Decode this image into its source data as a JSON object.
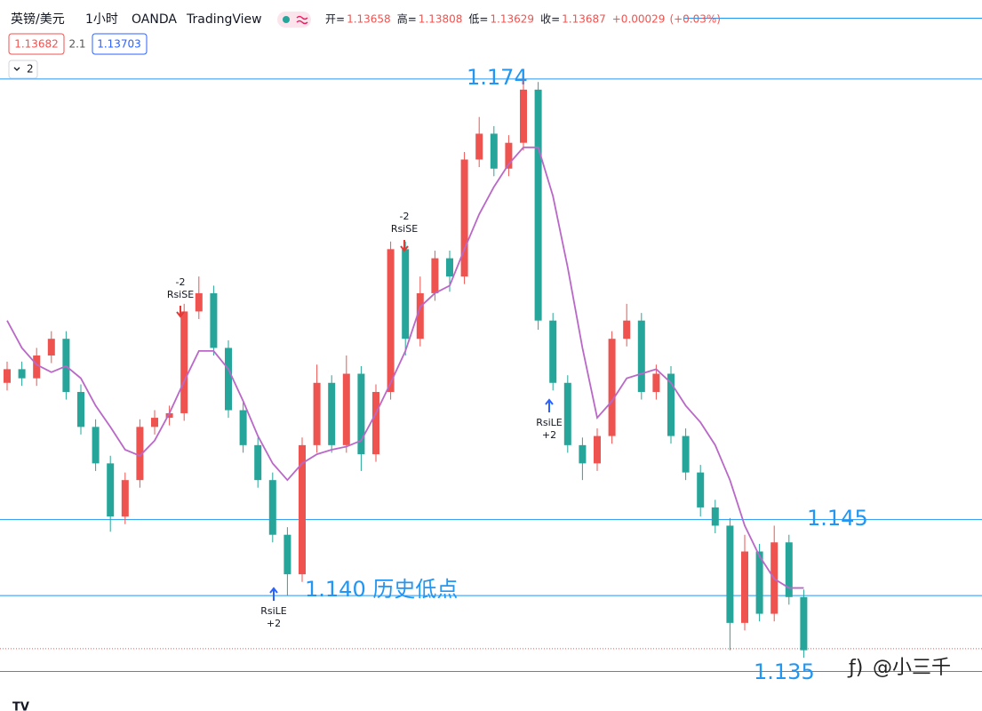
{
  "header": {
    "symbol": "英镑/美元",
    "interval": "1小时",
    "broker": "OANDA",
    "platform": "TradingView",
    "ohlc": [
      {
        "label": "开=",
        "value": 1.13658
      },
      {
        "label": "高=",
        "value": 1.13808
      },
      {
        "label": "低=",
        "value": 1.13629
      },
      {
        "label": "收=",
        "value": 1.13687
      }
    ],
    "change": {
      "value": 0.00029,
      "label": "+0.00029"
    },
    "change_pct": {
      "value": 0.03,
      "label": "(+0.03%)"
    }
  },
  "price_boxes": {
    "bid": 1.13682,
    "spread": 2.1,
    "ask": 1.13703
  },
  "indicator_count": 2,
  "watermark": "@小三千",
  "chart_data": {
    "type": "candlestick",
    "up_color": "#ef5350",
    "down_color": "#26a69a",
    "ylim": [
      1.1324,
      1.1792
    ],
    "ohlc": [
      [
        1.154,
        1.1554,
        1.1535,
        1.1549
      ],
      [
        1.1549,
        1.1554,
        1.1538,
        1.1543
      ],
      [
        1.1543,
        1.1563,
        1.1538,
        1.1558
      ],
      [
        1.1558,
        1.1574,
        1.1553,
        1.1569
      ],
      [
        1.1569,
        1.1574,
        1.1529,
        1.1534
      ],
      [
        1.1534,
        1.1539,
        1.1506,
        1.1511
      ],
      [
        1.1511,
        1.1516,
        1.1482,
        1.1487
      ],
      [
        1.1487,
        1.1492,
        1.1442,
        1.1452
      ],
      [
        1.1452,
        1.1481,
        1.1447,
        1.1476
      ],
      [
        1.1476,
        1.1516,
        1.1471,
        1.1511
      ],
      [
        1.1511,
        1.1522,
        1.1506,
        1.1517
      ],
      [
        1.1517,
        1.1525,
        1.1512,
        1.152
      ],
      [
        1.152,
        1.1592,
        1.1515,
        1.1587
      ],
      [
        1.1587,
        1.161,
        1.1582,
        1.1599
      ],
      [
        1.1599,
        1.1604,
        1.1558,
        1.1563
      ],
      [
        1.1563,
        1.1568,
        1.1517,
        1.1522
      ],
      [
        1.1522,
        1.1527,
        1.1494,
        1.1499
      ],
      [
        1.1499,
        1.1504,
        1.1471,
        1.1476
      ],
      [
        1.1476,
        1.1481,
        1.1435,
        1.144
      ],
      [
        1.144,
        1.1445,
        1.14,
        1.1414
      ],
      [
        1.1414,
        1.1504,
        1.1409,
        1.1499
      ],
      [
        1.1499,
        1.1552,
        1.1494,
        1.154
      ],
      [
        1.154,
        1.1545,
        1.1494,
        1.1499
      ],
      [
        1.1499,
        1.1558,
        1.1494,
        1.1546
      ],
      [
        1.1546,
        1.1551,
        1.1482,
        1.1493
      ],
      [
        1.1493,
        1.1539,
        1.1488,
        1.1534
      ],
      [
        1.1534,
        1.1633,
        1.1529,
        1.1628
      ],
      [
        1.1628,
        1.1633,
        1.1558,
        1.1569
      ],
      [
        1.1569,
        1.161,
        1.1564,
        1.1599
      ],
      [
        1.1599,
        1.1627,
        1.1594,
        1.1622
      ],
      [
        1.1622,
        1.1627,
        1.16,
        1.161
      ],
      [
        1.161,
        1.1692,
        1.1605,
        1.1687
      ],
      [
        1.1687,
        1.1715,
        1.1682,
        1.1704
      ],
      [
        1.1704,
        1.1709,
        1.1676,
        1.1681
      ],
      [
        1.1681,
        1.1703,
        1.1676,
        1.1698
      ],
      [
        1.1698,
        1.174,
        1.1693,
        1.1733
      ],
      [
        1.1733,
        1.1738,
        1.1575,
        1.1581
      ],
      [
        1.1581,
        1.1586,
        1.1535,
        1.154
      ],
      [
        1.154,
        1.1545,
        1.1494,
        1.1499
      ],
      [
        1.1499,
        1.1504,
        1.1476,
        1.1487
      ],
      [
        1.1487,
        1.151,
        1.1482,
        1.1505
      ],
      [
        1.1505,
        1.1574,
        1.15,
        1.1569
      ],
      [
        1.1569,
        1.1592,
        1.1564,
        1.1581
      ],
      [
        1.1581,
        1.1586,
        1.1529,
        1.1534
      ],
      [
        1.1534,
        1.1552,
        1.1529,
        1.1546
      ],
      [
        1.1546,
        1.1551,
        1.15,
        1.1505
      ],
      [
        1.1505,
        1.151,
        1.1476,
        1.1481
      ],
      [
        1.1481,
        1.1486,
        1.1452,
        1.1458
      ],
      [
        1.1458,
        1.1463,
        1.1441,
        1.1446
      ],
      [
        1.1446,
        1.1451,
        1.1364,
        1.1382
      ],
      [
        1.1382,
        1.144,
        1.1377,
        1.1429
      ],
      [
        1.1429,
        1.1434,
        1.1383,
        1.1388
      ],
      [
        1.1388,
        1.1446,
        1.1383,
        1.1435
      ],
      [
        1.1435,
        1.144,
        1.1394,
        1.1399
      ],
      [
        1.1399,
        1.1404,
        1.1359,
        1.1364
      ]
    ],
    "ma": {
      "color": "#ba68c8",
      "values": [
        1.1581,
        1.1563,
        1.1552,
        1.1547,
        1.1551,
        1.1543,
        1.1525,
        1.1511,
        1.1496,
        1.1492,
        1.1502,
        1.152,
        1.1541,
        1.1561,
        1.1561,
        1.1549,
        1.1528,
        1.1505,
        1.1487,
        1.1476,
        1.1487,
        1.1493,
        1.1496,
        1.1498,
        1.1502,
        1.152,
        1.154,
        1.1561,
        1.159,
        1.1599,
        1.1604,
        1.1628,
        1.1651,
        1.1669,
        1.1684,
        1.1695,
        1.1695,
        1.1663,
        1.1616,
        1.1563,
        1.1517,
        1.1528,
        1.1543,
        1.1546,
        1.1549,
        1.154,
        1.1525,
        1.1514,
        1.1499,
        1.1476,
        1.1446,
        1.1426,
        1.1411,
        1.1405,
        1.1405
      ]
    },
    "level_color": "#2196f3",
    "levels": [
      {
        "value": 1.178
      },
      {
        "value": 1.174,
        "label": "1.174"
      },
      {
        "value": 1.145,
        "label": "1.145"
      },
      {
        "value": 1.14,
        "label": "1.140 历史低点"
      },
      {
        "value": 1.135,
        "label": "1.135"
      }
    ],
    "last_price": 1.1365,
    "signals": [
      {
        "label": "RsiSE",
        "qty": -2
      },
      {
        "label": "RsiSE",
        "qty": -2
      },
      {
        "label": "RsiLE",
        "qty": {
          "value": 2,
          "label": "+2"
        }
      },
      {
        "label": "RsiLE",
        "qty": {
          "value": 2,
          "label": "+2"
        }
      }
    ]
  }
}
